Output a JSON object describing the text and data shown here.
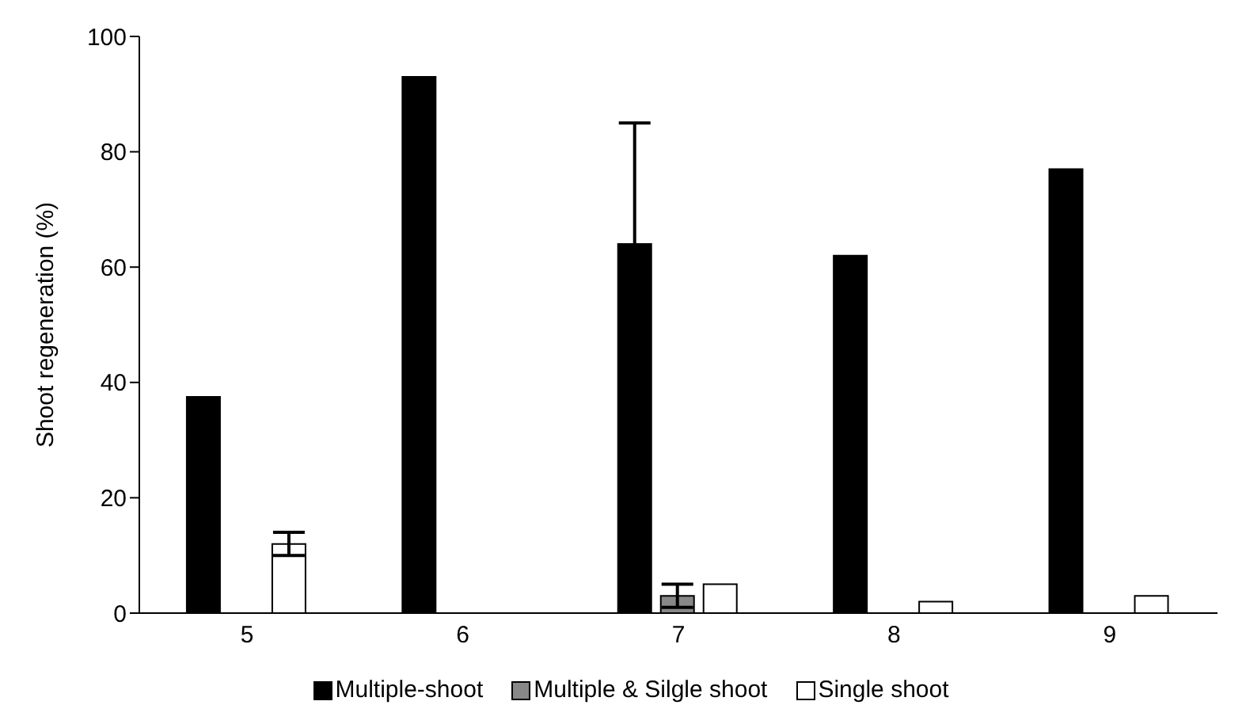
{
  "chart_data": {
    "type": "bar",
    "ylabel": "Shoot regeneration (%)",
    "categories": [
      "5",
      "6",
      "7",
      "8",
      "9"
    ],
    "series": [
      {
        "name": "Multiple-shoot",
        "color": "#000000",
        "values": [
          37.5,
          93,
          64,
          62,
          77
        ],
        "errors": [
          null,
          null,
          21,
          null,
          null
        ]
      },
      {
        "name": "Multiple & Silgle shoot",
        "color": "#888888",
        "values": [
          0,
          0,
          3,
          0,
          0
        ],
        "errors": [
          null,
          null,
          2,
          null,
          null
        ]
      },
      {
        "name": "Single shoot",
        "color": "#ffffff",
        "values": [
          12,
          0,
          5,
          2,
          3
        ],
        "errors": [
          2,
          null,
          null,
          null,
          null
        ]
      }
    ],
    "ylim": [
      0,
      100
    ],
    "yticks": [
      0,
      20,
      40,
      60,
      80,
      100
    ],
    "grid": false,
    "legend": "bottom"
  }
}
